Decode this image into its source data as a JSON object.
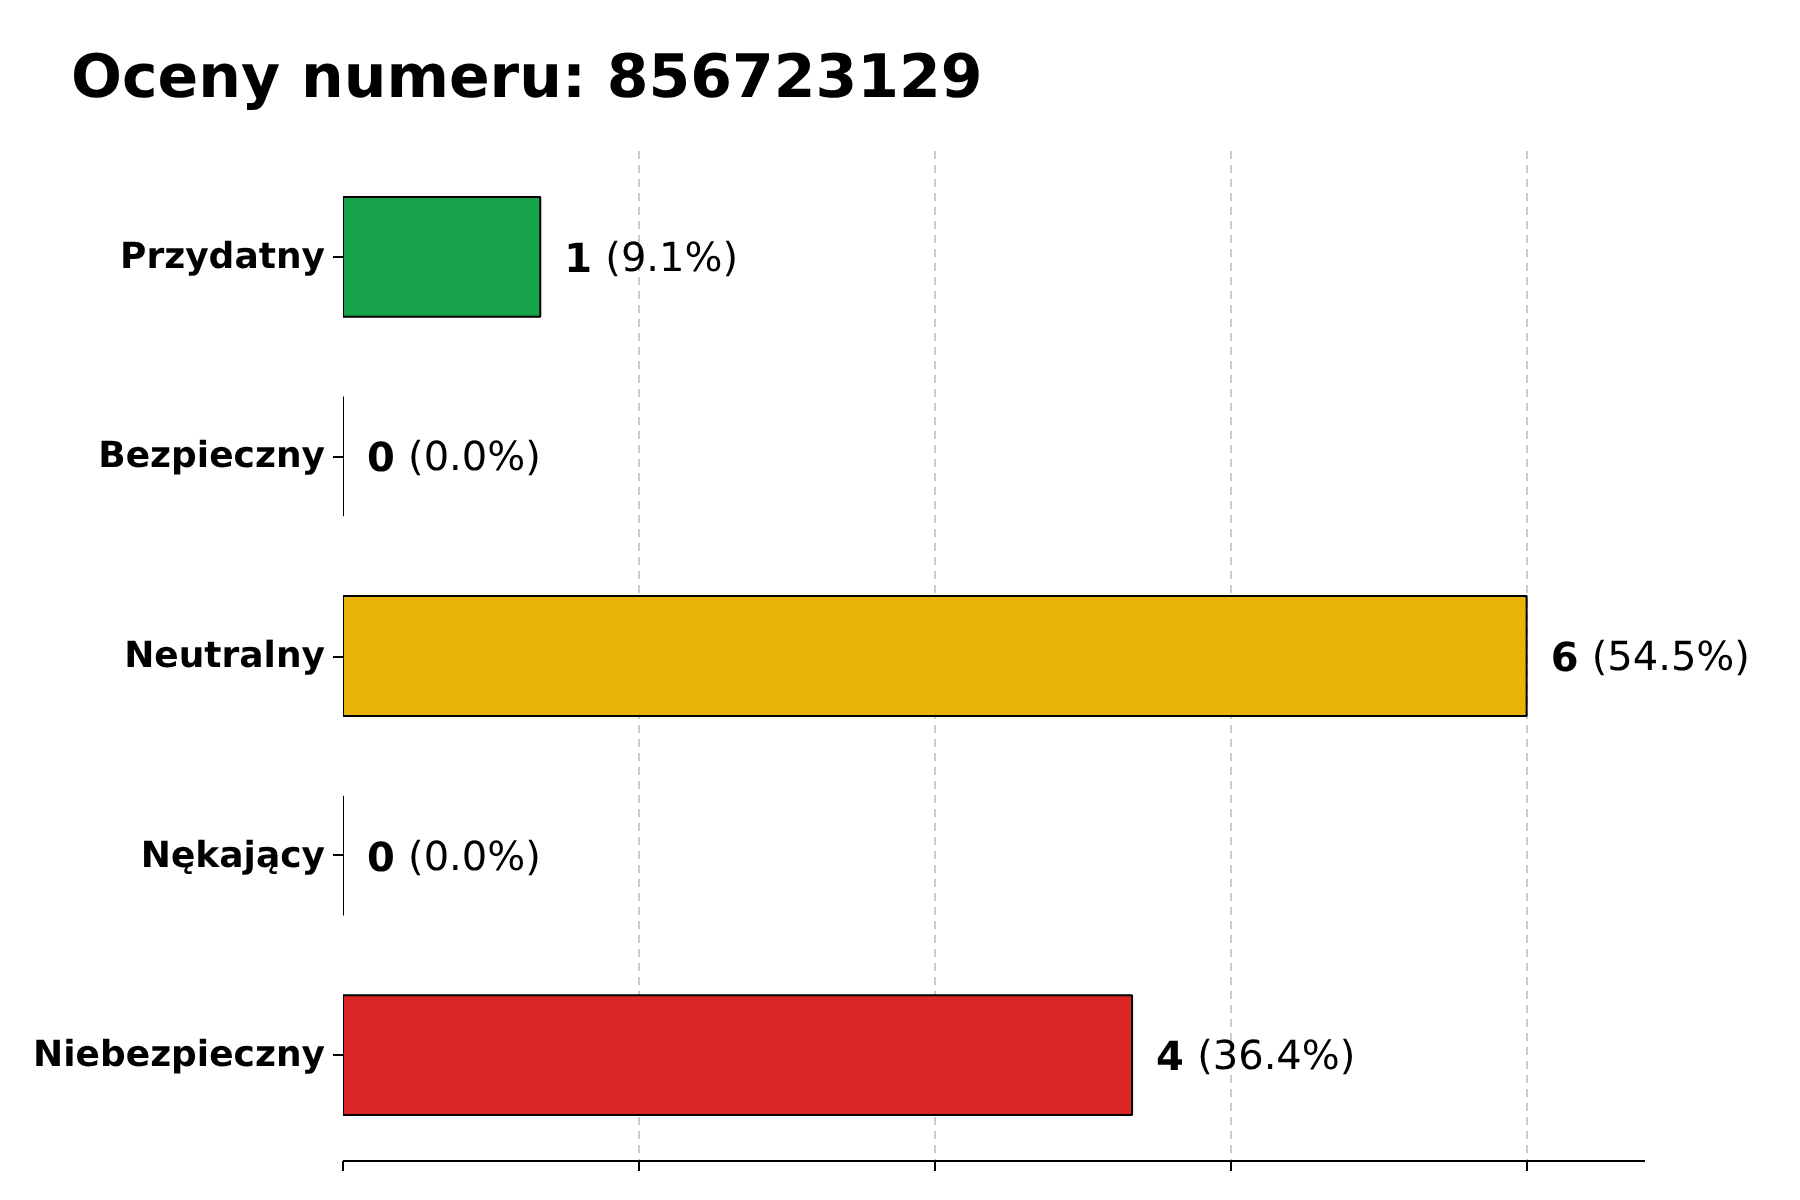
{
  "chart_data": {
    "type": "bar",
    "orientation": "horizontal",
    "title": "Oceny numeru: 856723129",
    "categories": [
      "Przydatny",
      "Bezpieczny",
      "Neutralny",
      "Nękający",
      "Niebezpieczny"
    ],
    "values": [
      1,
      0,
      6,
      0,
      4
    ],
    "colors": [
      "#16a34a",
      null,
      "#eab308",
      null,
      "#dc2626"
    ],
    "data_labels": true,
    "annotations": [
      {
        "text": "(9.1%)",
        "x": 1,
        "y": "Przydatny"
      },
      {
        "text": "(0.0%)",
        "x": 0,
        "y": "Bezpieczny"
      },
      {
        "text": "(54.5%)",
        "x": 6,
        "y": "Neutralny"
      },
      {
        "text": "(0.0%)",
        "x": 0,
        "y": "Nękający"
      },
      {
        "text": "(36.4%)",
        "x": 4,
        "y": "Niebezpieczny"
      }
    ],
    "grid": "x",
    "tick_labels": "y"
  }
}
